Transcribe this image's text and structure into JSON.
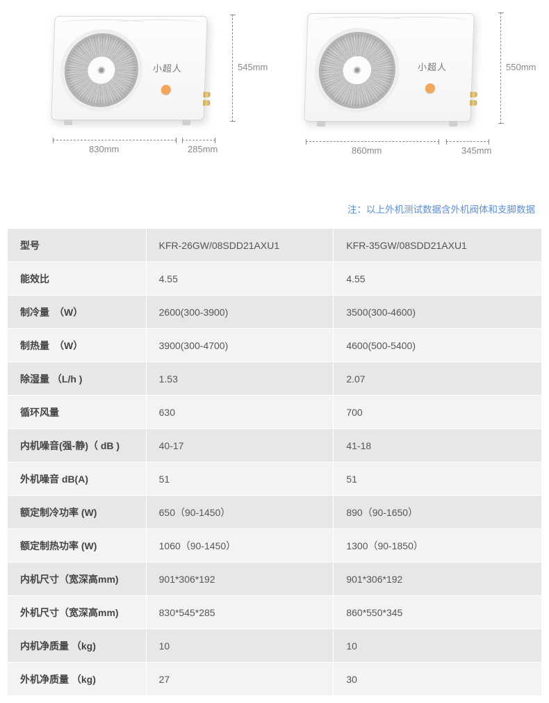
{
  "products": {
    "left": {
      "brand_text": "小超人",
      "dim_width": "830mm",
      "dim_depth": "285mm",
      "dim_height": "545mm"
    },
    "right": {
      "brand_text": "小超人",
      "dim_width": "860mm",
      "dim_depth": "345mm",
      "dim_height": "550mm"
    }
  },
  "note": "注：以上外机测试数据含外机阀体和支脚数据",
  "spec_table": {
    "params": [
      "型号",
      "能效比",
      "制冷量　（W）",
      "制热量　（W）",
      "除湿量 （L/h )",
      "循环风量",
      "内机噪音(强-静)（ dB )",
      "外机噪音 dB(A)",
      "额定制冷功率 (W)",
      "额定制热功率 (W)",
      "内机尺寸（宽深高mm)",
      "外机尺寸（宽深高mm)",
      "内机净质量 （kg)",
      "外机净质量 （kg)"
    ],
    "col1": [
      "KFR-26GW/08SDD21AXU1",
      "4.55",
      "2600(300-3900)",
      "3900(300-4700)",
      "1.53",
      "630",
      "40-17",
      "51",
      "650（90-1450）",
      "1060（90-1450）",
      "901*306*192",
      "830*545*285",
      "10",
      "27"
    ],
    "col2": [
      "KFR-35GW/08SDD21AXU1",
      "4.55",
      "3500(300-4600)",
      "4600(500-5400)",
      "2.07",
      "700",
      "41-18",
      "51",
      "890（90-1650）",
      "1300（90-1850）",
      "901*306*192",
      "860*550*345",
      "10",
      "30"
    ]
  },
  "colors": {
    "note_color": "#5b8fe0",
    "row_stripe_dark": "#e7e7e7",
    "row_stripe_light": "#f3f3f3",
    "text_color": "#555555",
    "param_color": "#444444",
    "dim_color": "#888888",
    "brand_dot": "#f2a65a"
  }
}
